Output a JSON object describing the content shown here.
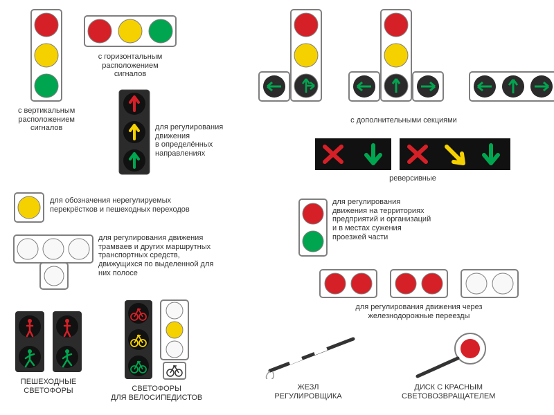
{
  "colors": {
    "red": "#d62027",
    "yellow": "#f6d100",
    "green": "#00a54f",
    "housing_white": "#ffffff",
    "housing_black": "#2b2b2b",
    "frame": "#7f7f7f",
    "white_lamp": "#f8f8f8"
  },
  "labels": {
    "vertical": "с вертикальным\nрасположением\nсигналов",
    "horizontal": "с горизонтальным\nрасположением\nсигналов",
    "directions": "для регулирования\nдвижения\nв определённых\nнаправлениях",
    "additional": "с дополнительными секциями",
    "reverse": "реверсивные",
    "single_yellow": "для обозначения нерегулируемых\nперекрёстков и пешеходных переходов",
    "tram": "для регулирования движения\nтрамваев и других маршрутных\nтранспортных средств,\nдвижущихся по выделенной для\nних полосе",
    "red_green": "для регулирования\nдвижения на территориях\nпредприятий и организаций\nи в местах сужения\nпроезжей части",
    "railway": "для регулирования движения через\nжелезнодорожные переезды",
    "pedestrian": "ПЕШЕХОДНЫЕ\nСВЕТОФОРЫ",
    "bicycle": "СВЕТОФОРЫ\nДЛЯ ВЕЛОСИПЕДИСТОВ",
    "baton": "ЖЕЗЛ\nРЕГУЛИРОВЩИКА",
    "disk": "ДИСК С КРАСНЫМ\nСВЕТОВОЗВРАЩАТЕЛЕМ"
  }
}
